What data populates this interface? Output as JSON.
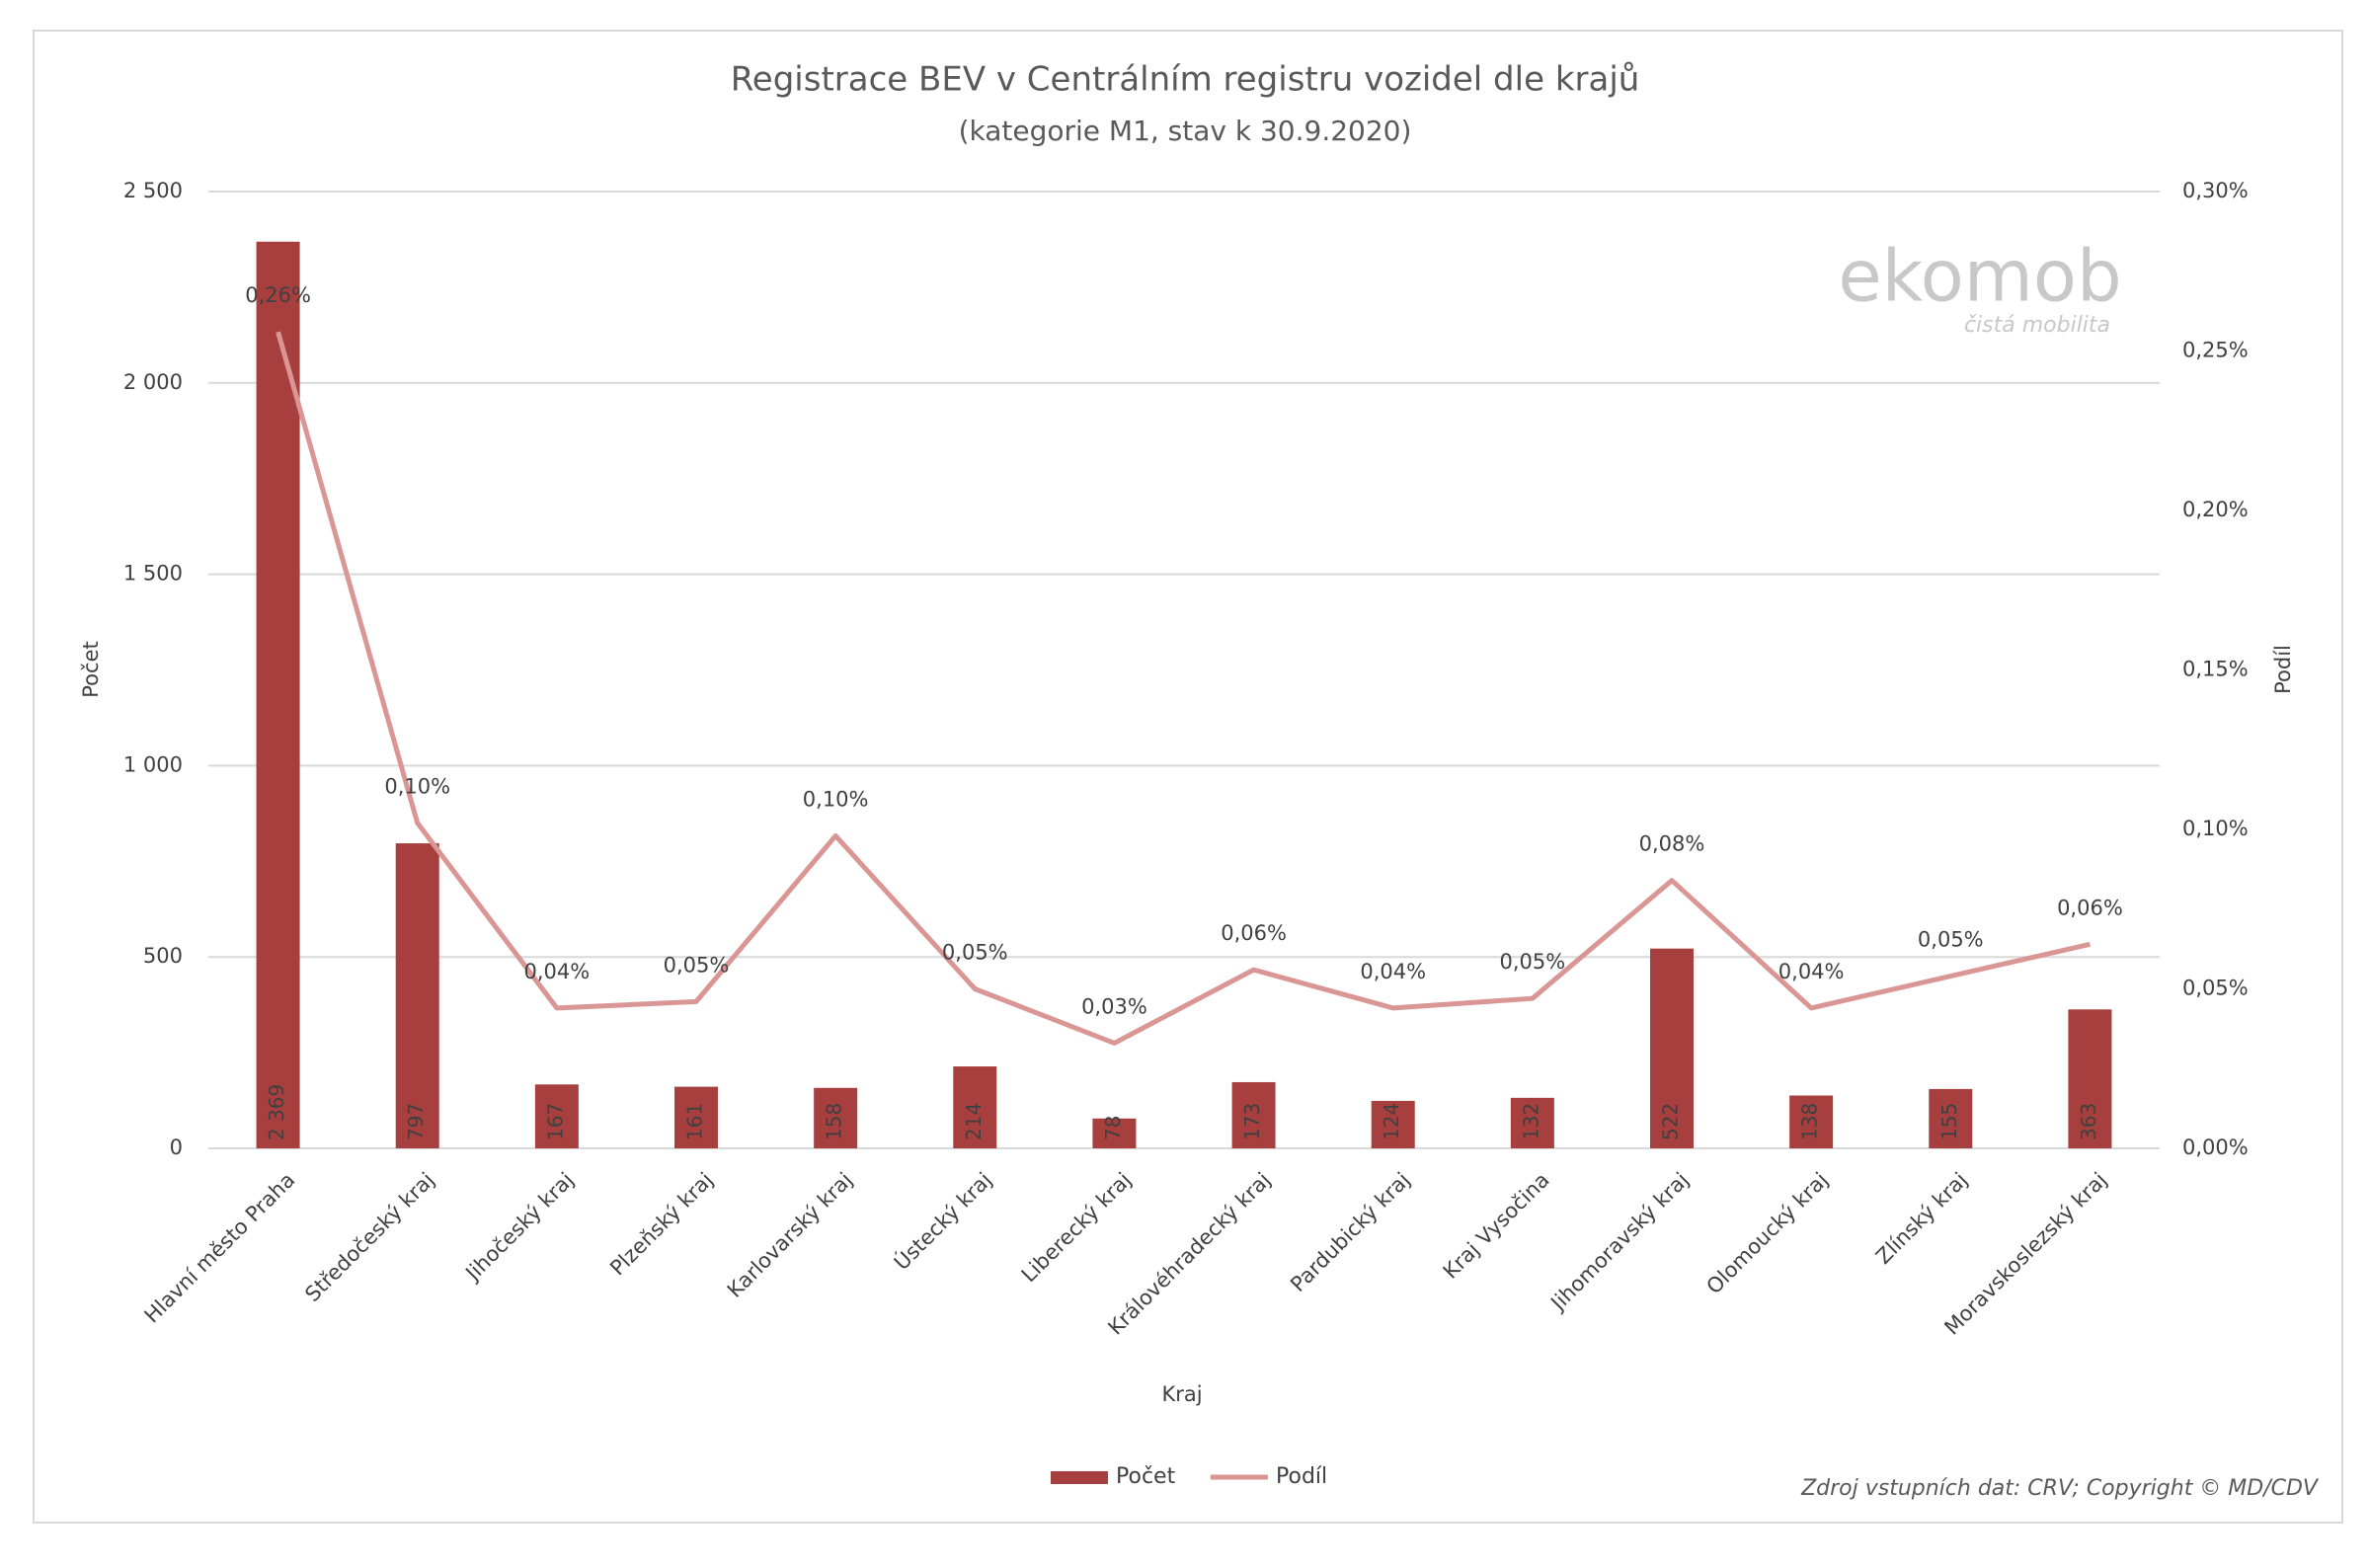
{
  "chart_data": {
    "type": "combo",
    "title": "Registrace BEV v Centrálním registru vozidel dle krajů",
    "subtitle": "(kategorie M1,  stav k 30.9.2020)",
    "x_label": "Kraj",
    "y_label": "Počet",
    "y2_label": "Podíl",
    "source": "Zdroj vstupních dat: CRV; Copyright © MD/CDV",
    "watermark": {
      "name": "ekomob",
      "tagline": "čistá mobilita"
    },
    "categories": [
      "Hlavní město Praha",
      "Středočeský kraj",
      "Jihočeský kraj",
      "Plzeňský kraj",
      "Karlovarský kraj",
      "Ústecký kraj",
      "Liberecký kraj",
      "Královéhradecký kraj",
      "Pardubický kraj",
      "Kraj Vysočina",
      "Jihomoravský kraj",
      "Olomoucký kraj",
      "Zlínský kraj",
      "Moravskoslezský kraj"
    ],
    "series": [
      {
        "name": "Počet",
        "type": "bar",
        "color": "#a63f3e",
        "values": [
          2369,
          797,
          167,
          161,
          158,
          214,
          78,
          173,
          124,
          132,
          522,
          138,
          155,
          363
        ],
        "value_labels": [
          "2 369",
          "797",
          "167",
          "161",
          "158",
          "214",
          "78",
          "173",
          "124",
          "132",
          "522",
          "138",
          "155",
          "363"
        ]
      },
      {
        "name": "Podíl",
        "type": "line",
        "color": "#d99694",
        "axis": "y2",
        "values": [
          0.256,
          0.102,
          0.044,
          0.046,
          0.098,
          0.05,
          0.033,
          0.056,
          0.044,
          0.047,
          0.084,
          0.044,
          0.054,
          0.064
        ],
        "value_labels": [
          "0,26%",
          "0,10%",
          "0,04%",
          "0,05%",
          "0,10%",
          "0,05%",
          "0,03%",
          "0,06%",
          "0,04%",
          "0,05%",
          "0,08%",
          "0,04%",
          "0,05%",
          "0,06%"
        ]
      }
    ],
    "ylim": [
      0,
      2500
    ],
    "yticks": [
      0,
      500,
      {
        "value": 1000,
        "label": "1 000"
      },
      {
        "value": 1500,
        "label": "1 500"
      },
      {
        "value": 2000,
        "label": "2 000"
      },
      {
        "value": 2500,
        "label": "2 500"
      }
    ],
    "y2lim": [
      0,
      0.3
    ],
    "y2ticks": [
      {
        "value": 0,
        "label": "0,00%"
      },
      {
        "value": 0.05,
        "label": "0,05%"
      },
      {
        "value": 0.1,
        "label": "0,10%"
      },
      {
        "value": 0.15,
        "label": "0,15%"
      },
      {
        "value": 0.2,
        "label": "0,20%"
      },
      {
        "value": 0.25,
        "label": "0,25%"
      },
      {
        "value": 0.3,
        "label": "0,30%"
      }
    ],
    "grid": true,
    "legend": "bottom"
  }
}
